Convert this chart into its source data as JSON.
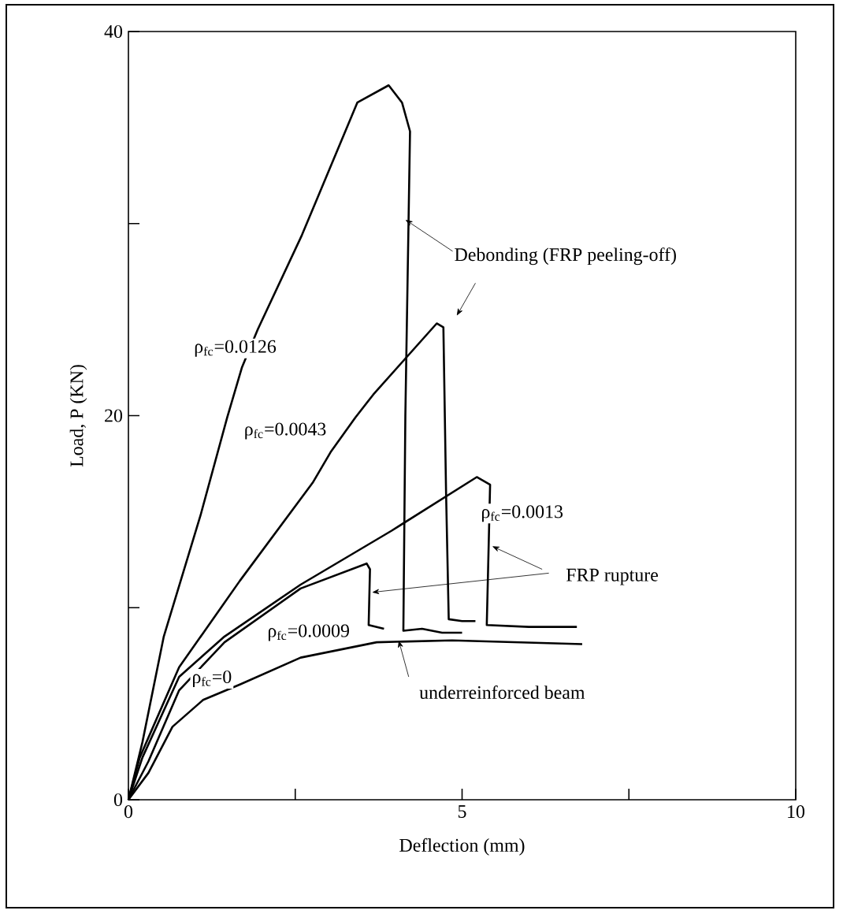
{
  "chart_data": {
    "type": "line",
    "xlabel": "Deflection  (mm)",
    "ylabel": "Load,  P  (KN)",
    "xlim": [
      0,
      10
    ],
    "ylim": [
      0,
      40
    ],
    "xticks": [
      0,
      {
        "value": 2.5,
        "label": null
      },
      5,
      {
        "value": 7.5,
        "label": null
      },
      10
    ],
    "yticks": [
      0,
      {
        "value": 10,
        "label": null
      },
      20,
      {
        "value": 30,
        "label": null
      },
      40
    ],
    "grid": false,
    "marker": "none",
    "line_style": "solid",
    "series": [
      {
        "name": "ρ$_{fc}$=0.0126",
        "color": "#000000",
        "x": [
          0,
          0.21,
          0.53,
          1.08,
          1.48,
          1.7,
          1.94,
          2.6,
          3.43,
          3.9,
          4.1,
          4.22,
          4.15,
          4.12,
          4.4,
          4.7,
          5.0
        ],
        "values": [
          0,
          3.0,
          8.5,
          14.8,
          19.9,
          22.5,
          24.5,
          29.4,
          36.3,
          37.2,
          36.3,
          34.8,
          20.0,
          8.8,
          8.9,
          8.7,
          8.7
        ]
      },
      {
        "name": "ρ$_{fc}$=0.0043",
        "color": "#000000",
        "x": [
          0,
          0.17,
          0.76,
          1.67,
          2.76,
          3.03,
          3.4,
          3.67,
          4.62,
          4.72,
          4.76,
          4.8,
          5.0,
          5.2
        ],
        "values": [
          0,
          2.2,
          6.9,
          11.4,
          16.5,
          18.1,
          19.9,
          21.1,
          24.8,
          24.6,
          16.0,
          9.4,
          9.3,
          9.3
        ]
      },
      {
        "name": "ρ$_{fc}$=0.0013",
        "color": "#000000",
        "x": [
          0,
          0.21,
          0.76,
          1.44,
          2.58,
          3.94,
          5.22,
          5.42,
          5.39,
          5.37,
          6.0,
          6.72
        ],
        "values": [
          0,
          2.2,
          6.4,
          8.5,
          11.2,
          14.0,
          16.8,
          16.4,
          12.0,
          9.1,
          9.0,
          9.0
        ]
      },
      {
        "name": "ρ$_{fc}$=0.0009",
        "color": "#000000",
        "x": [
          0,
          0.3,
          0.76,
          1.44,
          2.58,
          3.57,
          3.62,
          3.6,
          3.83
        ],
        "values": [
          0,
          2.0,
          5.7,
          8.2,
          11.0,
          12.3,
          12.0,
          9.1,
          8.9
        ]
      },
      {
        "name": "ρ$_{fc}$=0",
        "color": "#000000",
        "x": [
          0,
          0.3,
          0.66,
          1.12,
          1.67,
          2.58,
          3.72,
          4.85,
          6.8
        ],
        "values": [
          0,
          1.4,
          3.8,
          5.2,
          6.0,
          7.4,
          8.2,
          8.3,
          8.1
        ]
      }
    ],
    "annotations": [
      {
        "text": "Debonding  (FRP peeling-off)",
        "x": 4.15,
        "y": 30.2
      },
      {
        "text": "FRP rupture",
        "x": 3.65,
        "y": 10.8
      },
      {
        "text": "underreinforced beam",
        "x": 4.05,
        "y": 8.3
      }
    ]
  }
}
